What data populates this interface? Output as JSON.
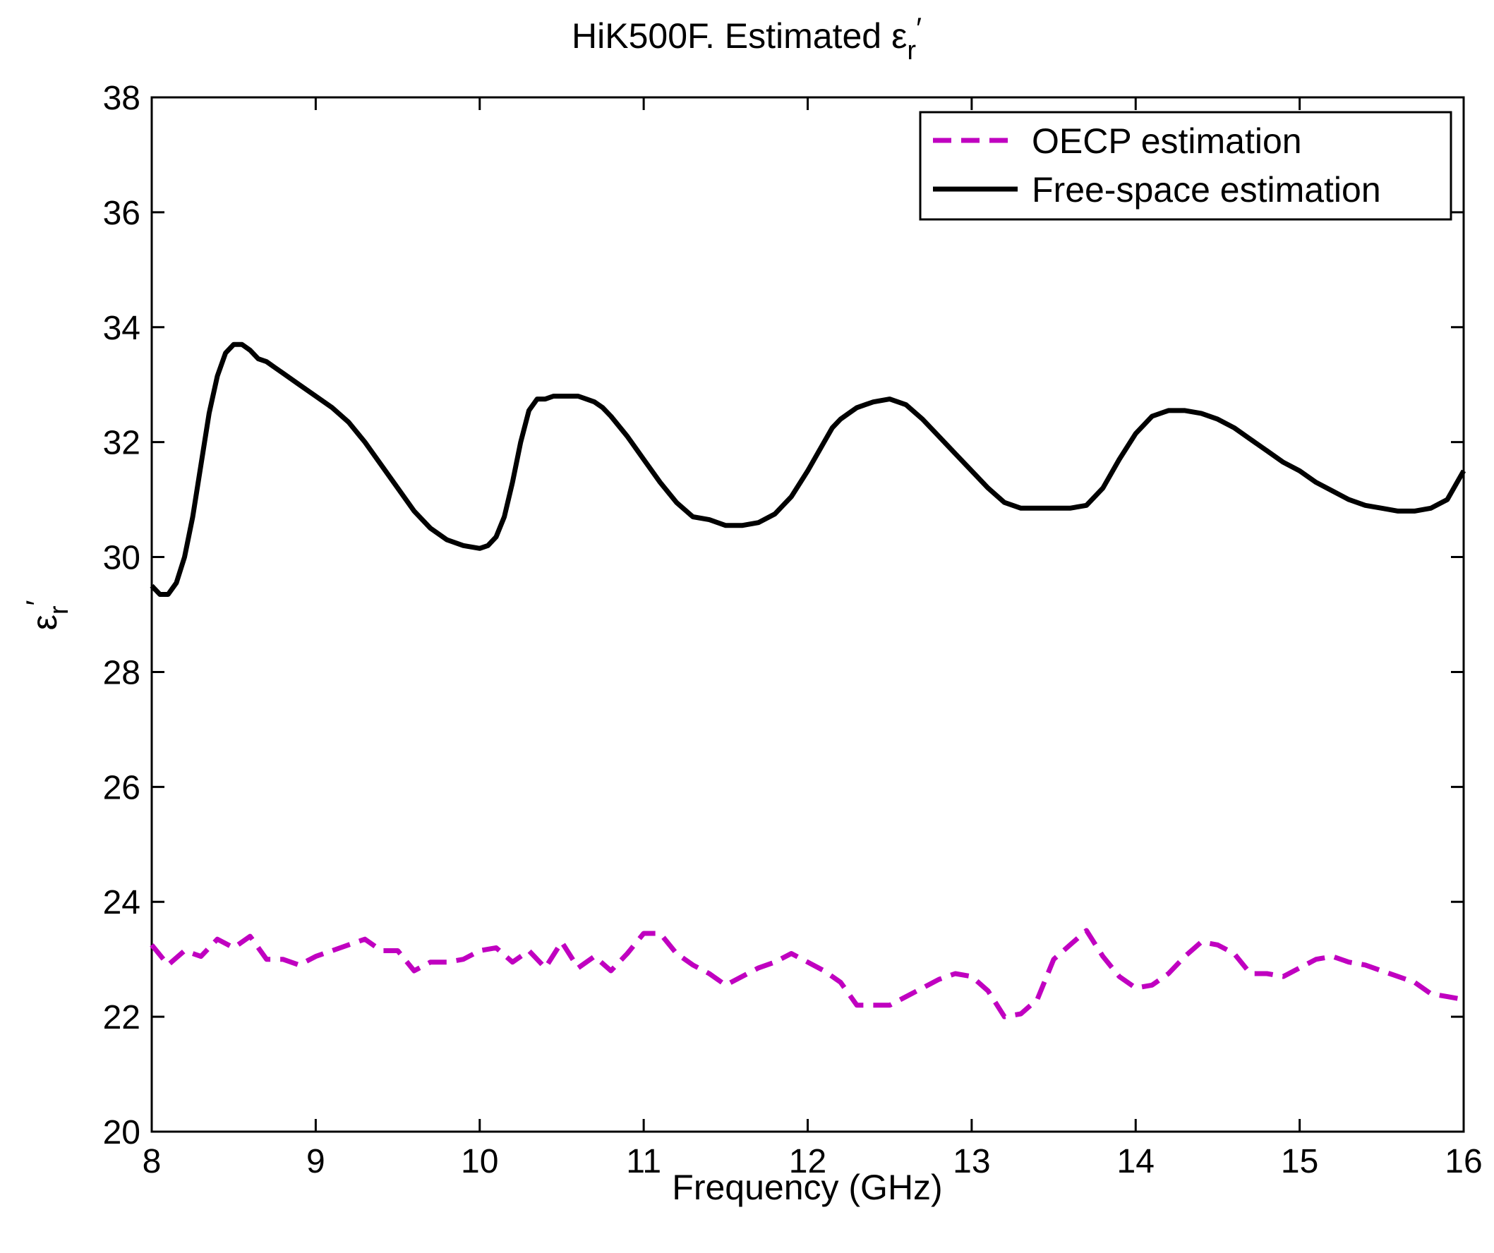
{
  "chart_data": {
    "type": "line",
    "title": "HiK500F. Estimated",
    "title_symbol": "ε",
    "title_subscript": "r",
    "title_prime": "′",
    "xlabel": "Frequency (GHz)",
    "ylabel_symbol": "ε",
    "ylabel_subscript": "r",
    "ylabel_prime": "′",
    "xlim": [
      8,
      16
    ],
    "ylim": [
      20,
      38
    ],
    "xticks": [
      8,
      9,
      10,
      11,
      12,
      13,
      14,
      15,
      16
    ],
    "yticks": [
      20,
      22,
      24,
      26,
      28,
      30,
      32,
      34,
      36,
      38
    ],
    "grid": false,
    "legend_position": "top-right",
    "series": [
      {
        "name": "OECP estimation",
        "color": "#c000c0",
        "style": "dashed",
        "x": [
          8.0,
          8.1,
          8.2,
          8.3,
          8.4,
          8.5,
          8.6,
          8.7,
          8.8,
          8.9,
          9.0,
          9.1,
          9.2,
          9.3,
          9.4,
          9.5,
          9.6,
          9.7,
          9.8,
          9.9,
          10.0,
          10.1,
          10.2,
          10.3,
          10.4,
          10.5,
          10.6,
          10.7,
          10.8,
          10.9,
          11.0,
          11.1,
          11.2,
          11.3,
          11.4,
          11.5,
          11.6,
          11.7,
          11.8,
          11.9,
          12.0,
          12.1,
          12.2,
          12.3,
          12.4,
          12.5,
          12.6,
          12.7,
          12.8,
          12.9,
          13.0,
          13.1,
          13.2,
          13.3,
          13.4,
          13.5,
          13.6,
          13.7,
          13.8,
          13.9,
          14.0,
          14.1,
          14.2,
          14.3,
          14.4,
          14.5,
          14.6,
          14.7,
          14.8,
          14.9,
          15.0,
          15.1,
          15.2,
          15.3,
          15.4,
          15.5,
          15.6,
          15.7,
          15.8,
          15.9,
          16.0
        ],
        "values": [
          23.25,
          22.9,
          23.15,
          23.05,
          23.35,
          23.2,
          23.4,
          23.0,
          23.0,
          22.9,
          23.05,
          23.15,
          23.25,
          23.35,
          23.15,
          23.15,
          22.8,
          22.95,
          22.95,
          23.0,
          23.15,
          23.2,
          22.95,
          23.15,
          22.85,
          23.3,
          22.85,
          23.05,
          22.8,
          23.1,
          23.45,
          23.45,
          23.1,
          22.9,
          22.75,
          22.55,
          22.7,
          22.85,
          22.95,
          23.1,
          22.95,
          22.8,
          22.6,
          22.2,
          22.2,
          22.2,
          22.35,
          22.5,
          22.65,
          22.75,
          22.7,
          22.45,
          22.0,
          22.05,
          22.3,
          23.0,
          23.25,
          23.5,
          23.05,
          22.7,
          22.5,
          22.55,
          22.75,
          23.05,
          23.3,
          23.25,
          23.1,
          22.75,
          22.75,
          22.7,
          22.85,
          23.0,
          23.05,
          22.95,
          22.9,
          22.8,
          22.7,
          22.6,
          22.4,
          22.35,
          22.3
        ]
      },
      {
        "name": "Free-space estimation",
        "color": "#000000",
        "style": "solid",
        "x": [
          8.0,
          8.05,
          8.1,
          8.15,
          8.2,
          8.25,
          8.3,
          8.35,
          8.4,
          8.45,
          8.5,
          8.55,
          8.6,
          8.65,
          8.7,
          8.75,
          8.8,
          8.9,
          9.0,
          9.1,
          9.2,
          9.3,
          9.4,
          9.5,
          9.6,
          9.7,
          9.8,
          9.9,
          10.0,
          10.05,
          10.1,
          10.15,
          10.2,
          10.25,
          10.3,
          10.35,
          10.4,
          10.45,
          10.5,
          10.55,
          10.6,
          10.65,
          10.7,
          10.75,
          10.8,
          10.9,
          11.0,
          11.1,
          11.2,
          11.3,
          11.4,
          11.5,
          11.6,
          11.7,
          11.8,
          11.9,
          12.0,
          12.1,
          12.15,
          12.2,
          12.25,
          12.3,
          12.35,
          12.4,
          12.5,
          12.6,
          12.7,
          12.8,
          12.9,
          13.0,
          13.1,
          13.2,
          13.3,
          13.4,
          13.5,
          13.6,
          13.7,
          13.8,
          13.9,
          14.0,
          14.1,
          14.2,
          14.3,
          14.4,
          14.5,
          14.6,
          14.7,
          14.8,
          14.9,
          15.0,
          15.1,
          15.2,
          15.3,
          15.4,
          15.5,
          15.6,
          15.7,
          15.8,
          15.9,
          16.0
        ],
        "values": [
          29.5,
          29.35,
          29.35,
          29.55,
          30.0,
          30.7,
          31.6,
          32.5,
          33.15,
          33.55,
          33.7,
          33.7,
          33.6,
          33.45,
          33.4,
          33.3,
          33.2,
          33.0,
          32.8,
          32.6,
          32.35,
          32.0,
          31.6,
          31.2,
          30.8,
          30.5,
          30.3,
          30.2,
          30.15,
          30.2,
          30.35,
          30.7,
          31.3,
          32.0,
          32.55,
          32.75,
          32.75,
          32.8,
          32.8,
          32.8,
          32.8,
          32.75,
          32.7,
          32.6,
          32.45,
          32.1,
          31.7,
          31.3,
          30.95,
          30.7,
          30.65,
          30.55,
          30.55,
          30.6,
          30.75,
          31.05,
          31.5,
          32.0,
          32.25,
          32.4,
          32.5,
          32.6,
          32.65,
          32.7,
          32.75,
          32.65,
          32.4,
          32.1,
          31.8,
          31.5,
          31.2,
          30.95,
          30.85,
          30.85,
          30.85,
          30.85,
          30.9,
          31.2,
          31.7,
          32.15,
          32.45,
          32.55,
          32.55,
          32.5,
          32.4,
          32.25,
          32.05,
          31.85,
          31.65,
          31.5,
          31.3,
          31.15,
          31.0,
          30.9,
          30.85,
          30.8,
          30.8,
          30.85,
          31.0,
          31.5
        ]
      }
    ]
  }
}
